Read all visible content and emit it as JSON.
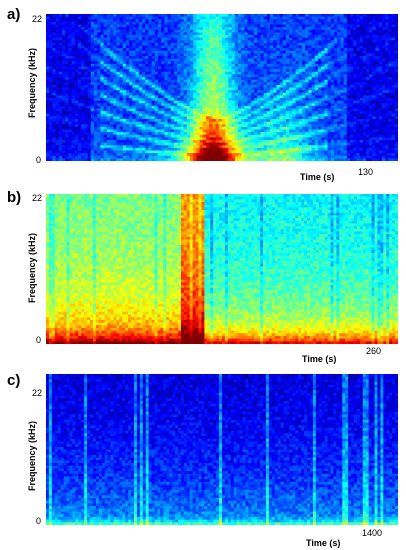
{
  "chart_data": [
    {
      "type": "heatmap",
      "panel_label": "a)",
      "ylabel": "Frequency (kHz)",
      "xlabel": "Time (s)",
      "y_ticks": [
        "22",
        "0"
      ],
      "x_tick": "130",
      "xlim": [
        0,
        130
      ],
      "ylim": [
        0,
        22
      ],
      "colormap": "jet",
      "description_colors": [
        "#00007f",
        "#0000ff",
        "#00aaff",
        "#55ffaa",
        "#ffff00",
        "#ff5500",
        "#aa0000"
      ]
    },
    {
      "type": "heatmap",
      "panel_label": "b)",
      "ylabel": "Frequency (kHz)",
      "xlabel": "Time (s)",
      "y_ticks": [
        "22",
        "0"
      ],
      "x_tick": "260",
      "xlim": [
        0,
        260
      ],
      "ylim": [
        0,
        22
      ],
      "colormap": "jet"
    },
    {
      "type": "heatmap",
      "panel_label": "c)",
      "ylabel": "Frequency (kHz)",
      "xlabel": "Time (s)",
      "y_ticks": [
        "22",
        "0"
      ],
      "x_tick": "1400",
      "xlim": [
        0,
        1400
      ],
      "ylim": [
        0,
        22
      ],
      "colormap": "jet"
    }
  ]
}
